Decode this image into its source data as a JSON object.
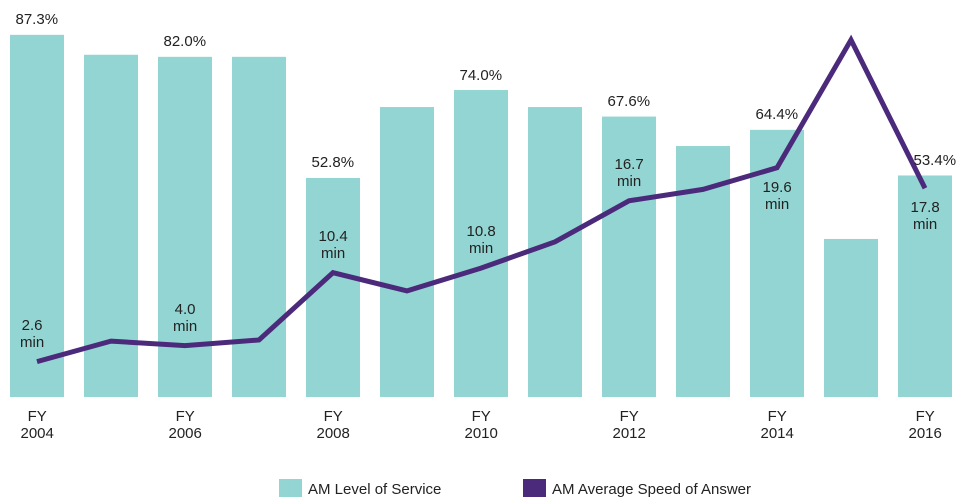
{
  "chart_data": {
    "type": "bar",
    "categories": [
      "FY\n2004",
      null,
      "FY\n2006",
      null,
      "FY\n2008",
      null,
      "FY\n2010",
      null,
      "FY\n2012",
      null,
      "FY\n2014",
      null,
      "FY\n2016"
    ],
    "series": [
      {
        "name": "AM Level of Service",
        "color": "#93d5d2",
        "type": "bar",
        "values": [
          87.3,
          82.5,
          82.0,
          82.0,
          52.8,
          69.9,
          74.0,
          69.9,
          67.6,
          60.5,
          64.4,
          38.1,
          53.4
        ],
        "value_labels": [
          "87.3%",
          null,
          "82.0%",
          null,
          "52.8%",
          null,
          "74.0%",
          null,
          "67.6%",
          null,
          "64.4%",
          null,
          "53.4%"
        ]
      },
      {
        "name": "AM Average Speed of Answer",
        "color": "#4b2a7b",
        "type": "line",
        "axis": "y2",
        "values": [
          2.6,
          4.4,
          4.0,
          4.5,
          10.4,
          8.8,
          10.8,
          13.1,
          16.7,
          17.7,
          19.6,
          30.8,
          17.8
        ],
        "value_labels": [
          "2.6\nmin",
          null,
          "4.0\nmin",
          null,
          "10.4\nmin",
          null,
          "10.8\nmin",
          null,
          "16.7\nmin",
          null,
          "19.6\nmin",
          null,
          "17.8\nmin"
        ]
      }
    ],
    "ylim": [
      0,
      95.7
    ],
    "y2lim": [
      -0.5,
      34.3
    ]
  }
}
